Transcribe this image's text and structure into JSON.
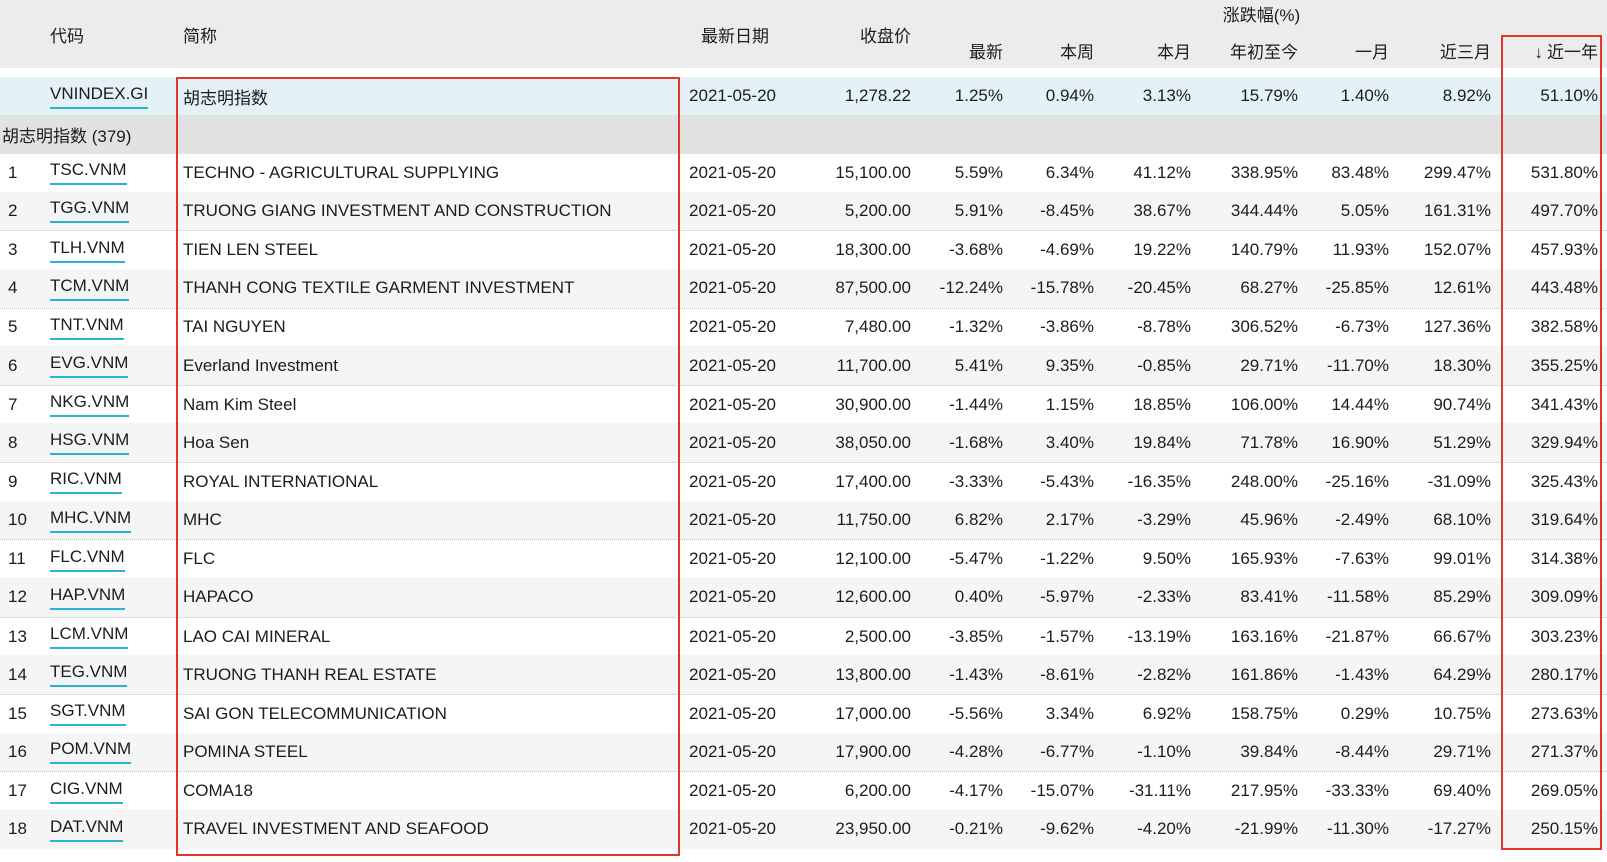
{
  "table": {
    "headers": {
      "code": "代码",
      "name": "简称",
      "date": "最新日期",
      "close": "收盘价",
      "change_group": "涨跌幅(%)",
      "sub": [
        "最新",
        "本周",
        "本月",
        "年初至今",
        "一月",
        "近三月",
        "近一年"
      ],
      "sort_arrow": "↓",
      "sorted_column": "近一年",
      "sort_direction": "desc"
    },
    "index_row": {
      "code": "VNINDEX.GI",
      "name": "胡志明指数",
      "date": "2021-05-20",
      "close": "1,278.22",
      "pct": [
        "1.25%",
        "0.94%",
        "3.13%",
        "15.79%",
        "1.40%",
        "8.92%",
        "51.10%"
      ]
    },
    "section_label": "胡志明指数 (379)",
    "rows": [
      {
        "num": "1",
        "code": "TSC.VNM",
        "name": "TECHNO - AGRICULTURAL SUPPLYING",
        "date": "2021-05-20",
        "close": "15,100.00",
        "pct": [
          "5.59%",
          "6.34%",
          "41.12%",
          "338.95%",
          "83.48%",
          "299.47%",
          "531.80%"
        ]
      },
      {
        "num": "2",
        "code": "TGG.VNM",
        "name": "TRUONG GIANG INVESTMENT AND CONSTRUCTION",
        "date": "2021-05-20",
        "close": "5,200.00",
        "pct": [
          "5.91%",
          "-8.45%",
          "38.67%",
          "344.44%",
          "5.05%",
          "161.31%",
          "497.70%"
        ]
      },
      {
        "num": "3",
        "code": "TLH.VNM",
        "name": "TIEN LEN STEEL",
        "date": "2021-05-20",
        "close": "18,300.00",
        "pct": [
          "-3.68%",
          "-4.69%",
          "19.22%",
          "140.79%",
          "11.93%",
          "152.07%",
          "457.93%"
        ]
      },
      {
        "num": "4",
        "code": "TCM.VNM",
        "name": "THANH CONG TEXTILE GARMENT INVESTMENT",
        "date": "2021-05-20",
        "close": "87,500.00",
        "pct": [
          "-12.24%",
          "-15.78%",
          "-20.45%",
          "68.27%",
          "-25.85%",
          "12.61%",
          "443.48%"
        ]
      },
      {
        "num": "5",
        "code": "TNT.VNM",
        "name": "TAI NGUYEN",
        "date": "2021-05-20",
        "close": "7,480.00",
        "pct": [
          "-1.32%",
          "-3.86%",
          "-8.78%",
          "306.52%",
          "-6.73%",
          "127.36%",
          "382.58%"
        ]
      },
      {
        "num": "6",
        "code": "EVG.VNM",
        "name": "Everland Investment",
        "date": "2021-05-20",
        "close": "11,700.00",
        "pct": [
          "5.41%",
          "9.35%",
          "-0.85%",
          "29.71%",
          "-11.70%",
          "18.30%",
          "355.25%"
        ]
      },
      {
        "num": "7",
        "code": "NKG.VNM",
        "name": "Nam Kim Steel",
        "date": "2021-05-20",
        "close": "30,900.00",
        "pct": [
          "-1.44%",
          "1.15%",
          "18.85%",
          "106.00%",
          "14.44%",
          "90.74%",
          "341.43%"
        ]
      },
      {
        "num": "8",
        "code": "HSG.VNM",
        "name": "Hoa Sen",
        "date": "2021-05-20",
        "close": "38,050.00",
        "pct": [
          "-1.68%",
          "3.40%",
          "19.84%",
          "71.78%",
          "16.90%",
          "51.29%",
          "329.94%"
        ]
      },
      {
        "num": "9",
        "code": "RIC.VNM",
        "name": "ROYAL INTERNATIONAL",
        "date": "2021-05-20",
        "close": "17,400.00",
        "pct": [
          "-3.33%",
          "-5.43%",
          "-16.35%",
          "248.00%",
          "-25.16%",
          "-31.09%",
          "325.43%"
        ]
      },
      {
        "num": "10",
        "code": "MHC.VNM",
        "name": "MHC",
        "date": "2021-05-20",
        "close": "11,750.00",
        "pct": [
          "6.82%",
          "2.17%",
          "-3.29%",
          "45.96%",
          "-2.49%",
          "68.10%",
          "319.64%"
        ]
      },
      {
        "num": "11",
        "code": "FLC.VNM",
        "name": "FLC",
        "date": "2021-05-20",
        "close": "12,100.00",
        "pct": [
          "-5.47%",
          "-1.22%",
          "9.50%",
          "165.93%",
          "-7.63%",
          "99.01%",
          "314.38%"
        ]
      },
      {
        "num": "12",
        "code": "HAP.VNM",
        "name": "HAPACO",
        "date": "2021-05-20",
        "close": "12,600.00",
        "pct": [
          "0.40%",
          "-5.97%",
          "-2.33%",
          "83.41%",
          "-11.58%",
          "85.29%",
          "309.09%"
        ]
      },
      {
        "num": "13",
        "code": "LCM.VNM",
        "name": "LAO CAI MINERAL",
        "date": "2021-05-20",
        "close": "2,500.00",
        "pct": [
          "-3.85%",
          "-1.57%",
          "-13.19%",
          "163.16%",
          "-21.87%",
          "66.67%",
          "303.23%"
        ]
      },
      {
        "num": "14",
        "code": "TEG.VNM",
        "name": "TRUONG THANH REAL ESTATE",
        "date": "2021-05-20",
        "close": "13,800.00",
        "pct": [
          "-1.43%",
          "-8.61%",
          "-2.82%",
          "161.86%",
          "-1.43%",
          "64.29%",
          "280.17%"
        ]
      },
      {
        "num": "15",
        "code": "SGT.VNM",
        "name": "SAI GON TELECOMMUNICATION",
        "date": "2021-05-20",
        "close": "17,000.00",
        "pct": [
          "-5.56%",
          "3.34%",
          "6.92%",
          "158.75%",
          "0.29%",
          "10.75%",
          "273.63%"
        ]
      },
      {
        "num": "16",
        "code": "POM.VNM",
        "name": "POMINA STEEL",
        "date": "2021-05-20",
        "close": "17,900.00",
        "pct": [
          "-4.28%",
          "-6.77%",
          "-1.10%",
          "39.84%",
          "-8.44%",
          "29.71%",
          "271.37%"
        ]
      },
      {
        "num": "17",
        "code": "CIG.VNM",
        "name": "COMA18",
        "date": "2021-05-20",
        "close": "6,200.00",
        "pct": [
          "-4.17%",
          "-15.07%",
          "-31.11%",
          "217.95%",
          "-33.33%",
          "69.40%",
          "269.05%"
        ]
      },
      {
        "num": "18",
        "code": "DAT.VNM",
        "name": "TRAVEL INVESTMENT AND SEAFOOD",
        "date": "2021-05-20",
        "close": "23,950.00",
        "pct": [
          "-0.21%",
          "-9.62%",
          "-4.20%",
          "-21.99%",
          "-11.30%",
          "-17.27%",
          "250.15%"
        ]
      }
    ]
  },
  "colors": {
    "header_bg": "#ececec",
    "section_row_bg": "#e2e2e2",
    "index_row_highlight": "#e4f1f7",
    "zebra_row_bg": "#f5f5f5",
    "annotation_red": "#e2352b",
    "link_underline_teal": "#2bb3d4",
    "text": "#1c1c1c"
  }
}
